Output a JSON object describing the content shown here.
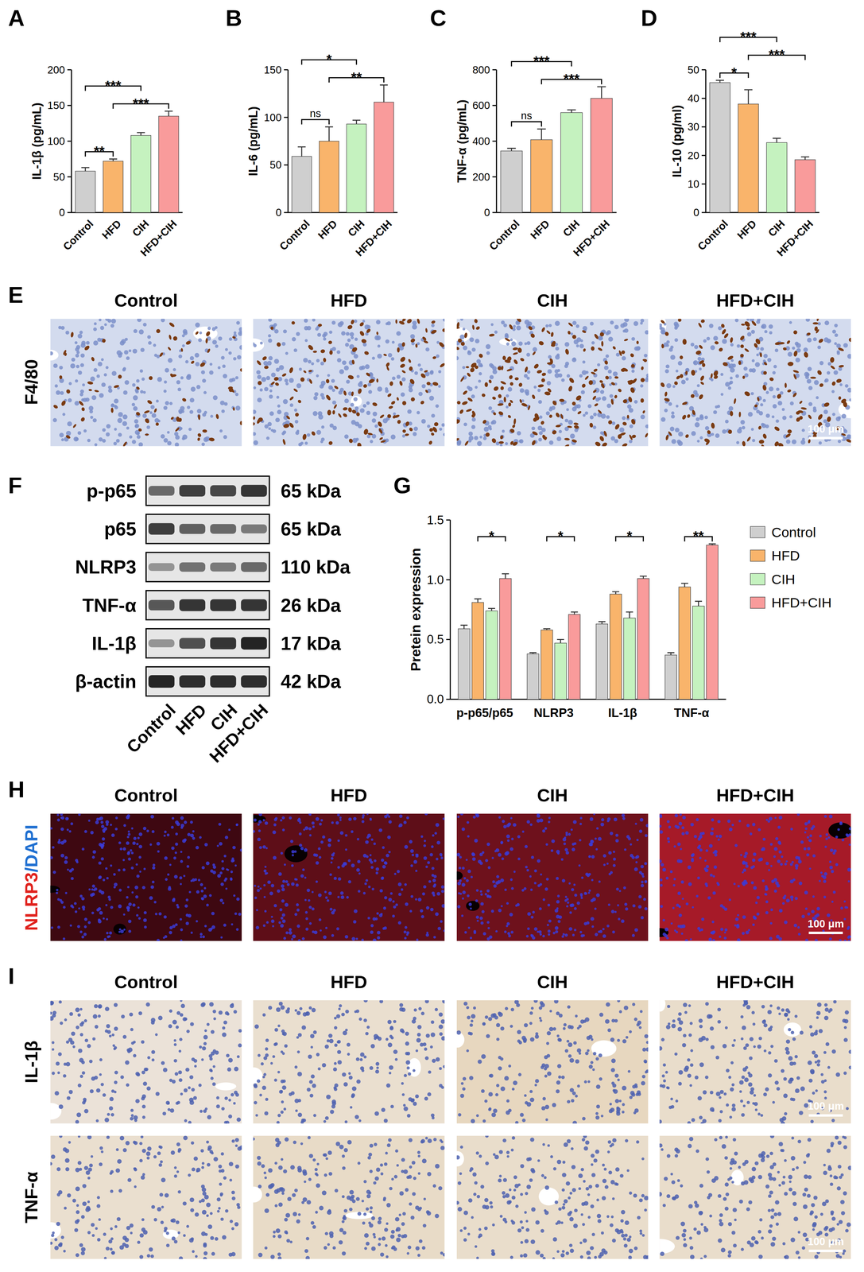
{
  "chart_data": [
    {
      "type": "bar",
      "panel": "A",
      "y_label": "IL-1β (pg/mL)",
      "categories": [
        "Control",
        "HFD",
        "CIH",
        "HFD+CIH"
      ],
      "values": [
        58,
        72,
        108,
        135
      ],
      "errors": [
        5,
        3,
        4,
        7
      ],
      "colors": [
        "#cfcfcf",
        "#f9b46b",
        "#c5f2bf",
        "#f99b9b"
      ],
      "ylim": [
        0,
        200
      ],
      "yticks": [
        0,
        50,
        100,
        150,
        200
      ],
      "comparisons": [
        {
          "groups": [
            0,
            1
          ],
          "label": "**"
        },
        {
          "groups": [
            1,
            3
          ],
          "label": "***"
        },
        {
          "groups": [
            0,
            2
          ],
          "label": "***"
        }
      ]
    },
    {
      "type": "bar",
      "panel": "B",
      "y_label": "IL-6 (pg/mL)",
      "categories": [
        "Control",
        "HFD",
        "CIH",
        "HFD+CIH"
      ],
      "values": [
        59,
        75,
        93,
        116
      ],
      "errors": [
        10,
        15,
        4,
        18
      ],
      "colors": [
        "#cfcfcf",
        "#f9b46b",
        "#c5f2bf",
        "#f99b9b"
      ],
      "ylim": [
        0,
        150
      ],
      "yticks": [
        0,
        50,
        100,
        150
      ],
      "comparisons": [
        {
          "groups": [
            0,
            1
          ],
          "label": "ns"
        },
        {
          "groups": [
            1,
            3
          ],
          "label": "**"
        },
        {
          "groups": [
            0,
            2
          ],
          "label": "*"
        }
      ]
    },
    {
      "type": "bar",
      "panel": "C",
      "y_label": "TNF-α (pg/mL)",
      "categories": [
        "Control",
        "HFD",
        "CIH",
        "HFD+CIH"
      ],
      "values": [
        345,
        408,
        560,
        640
      ],
      "errors": [
        15,
        60,
        15,
        65
      ],
      "colors": [
        "#cfcfcf",
        "#f9b46b",
        "#c5f2bf",
        "#f99b9b"
      ],
      "ylim": [
        0,
        800
      ],
      "yticks": [
        0,
        200,
        400,
        600,
        800
      ],
      "comparisons": [
        {
          "groups": [
            0,
            1
          ],
          "label": "ns"
        },
        {
          "groups": [
            1,
            3
          ],
          "label": "***"
        },
        {
          "groups": [
            0,
            2
          ],
          "label": "***"
        }
      ]
    },
    {
      "type": "bar",
      "panel": "D",
      "y_label": "IL-10 (pg/ml)",
      "categories": [
        "Control",
        "HFD",
        "CIH",
        "HFD+CIH"
      ],
      "values": [
        45.5,
        38,
        24.5,
        18.5
      ],
      "errors": [
        0.8,
        5,
        1.5,
        1
      ],
      "colors": [
        "#cfcfcf",
        "#f9b46b",
        "#c5f2bf",
        "#f99b9b"
      ],
      "ylim": [
        0,
        50
      ],
      "yticks": [
        0,
        10,
        20,
        30,
        40,
        50
      ],
      "comparisons": [
        {
          "groups": [
            0,
            1
          ],
          "label": "*"
        },
        {
          "groups": [
            1,
            3
          ],
          "label": "***"
        },
        {
          "groups": [
            0,
            2
          ],
          "label": "***"
        }
      ]
    },
    {
      "type": "bar",
      "panel": "G",
      "y_label": "Pretein expression",
      "categories": [
        "p-p65/p65",
        "NLRP3",
        "IL-1β",
        "TNF-α"
      ],
      "series": [
        {
          "name": "Control",
          "color": "#cfcfcf",
          "values": [
            0.59,
            0.38,
            0.63,
            0.37
          ],
          "errors": [
            0.03,
            0.01,
            0.02,
            0.02
          ]
        },
        {
          "name": "HFD",
          "color": "#f9b46b",
          "values": [
            0.81,
            0.58,
            0.88,
            0.94
          ],
          "errors": [
            0.03,
            0.01,
            0.02,
            0.03
          ]
        },
        {
          "name": "CIH",
          "color": "#c5f2bf",
          "values": [
            0.74,
            0.47,
            0.68,
            0.78
          ],
          "errors": [
            0.02,
            0.03,
            0.05,
            0.04
          ]
        },
        {
          "name": "HFD+CIH",
          "color": "#f99b9b",
          "values": [
            1.01,
            0.71,
            1.01,
            1.29
          ],
          "errors": [
            0.04,
            0.02,
            0.02,
            0.01
          ]
        }
      ],
      "ylim": [
        0,
        1.5
      ],
      "yticks": [
        {
          "value": 0,
          "label": "0.0"
        },
        {
          "value": 0.5,
          "label": "0.5"
        },
        {
          "value": 1,
          "label": "1.0"
        },
        {
          "value": 1.5,
          "label": "1.5"
        }
      ],
      "legend": "right",
      "comparisons": [
        {
          "category": 0,
          "groups": [
            1,
            3
          ],
          "label": "*"
        },
        {
          "category": 1,
          "groups": [
            1,
            3
          ],
          "label": "*"
        },
        {
          "category": 2,
          "groups": [
            1,
            3
          ],
          "label": "*"
        },
        {
          "category": 3,
          "groups": [
            1,
            3
          ],
          "label": "**"
        }
      ]
    }
  ],
  "figure": {
    "E": {
      "panel": "E",
      "columns": [
        "Control",
        "HFD",
        "CIH",
        "HFD+CIH"
      ],
      "row_label": "F4/80",
      "positive_density": [
        0.3,
        0.6,
        0.85,
        0.6
      ],
      "scale_bar": "100 μm"
    },
    "F": {
      "panel": "F",
      "lanes": [
        "Control",
        "HFD",
        "CIH",
        "HFD+CIH"
      ],
      "bands": [
        {
          "name": "p-p65",
          "size": "65 kDa",
          "intensity": [
            0.55,
            0.8,
            0.75,
            0.85
          ]
        },
        {
          "name": "p65",
          "size": "65 kDa",
          "intensity": [
            0.8,
            0.6,
            0.55,
            0.45
          ]
        },
        {
          "name": "NLRP3",
          "size": "110 kDa",
          "intensity": [
            0.3,
            0.5,
            0.45,
            0.55
          ]
        },
        {
          "name": "TNF-α",
          "size": "26 kDa",
          "intensity": [
            0.65,
            0.85,
            0.85,
            0.85
          ]
        },
        {
          "name": "IL-1β",
          "size": "17 kDa",
          "intensity": [
            0.3,
            0.7,
            0.85,
            0.95
          ]
        },
        {
          "name": "β-actin",
          "size": "42 kDa",
          "intensity": [
            0.95,
            0.9,
            0.9,
            0.9
          ]
        }
      ]
    },
    "H": {
      "panel": "H",
      "columns": [
        "Control",
        "HFD",
        "CIH",
        "HFD+CIH"
      ],
      "stain": [
        {
          "text": "NLRP3",
          "color": "#e0201b"
        },
        {
          "text": "/DAPI",
          "color": "#1f6fd1"
        }
      ],
      "signal": [
        0.2,
        0.4,
        0.5,
        0.85
      ],
      "scale_bar": "100 μm"
    },
    "I": {
      "panel": "I",
      "columns": [
        "Control",
        "HFD",
        "CIH",
        "HFD+CIH"
      ],
      "rows": [
        {
          "label": "IL-1β",
          "staining": [
            0.2,
            0.3,
            0.5,
            0.35
          ]
        },
        {
          "label": "TNF-α",
          "staining": [
            0.3,
            0.4,
            0.35,
            0.35
          ]
        }
      ],
      "scale_bar": "100 μm"
    }
  }
}
